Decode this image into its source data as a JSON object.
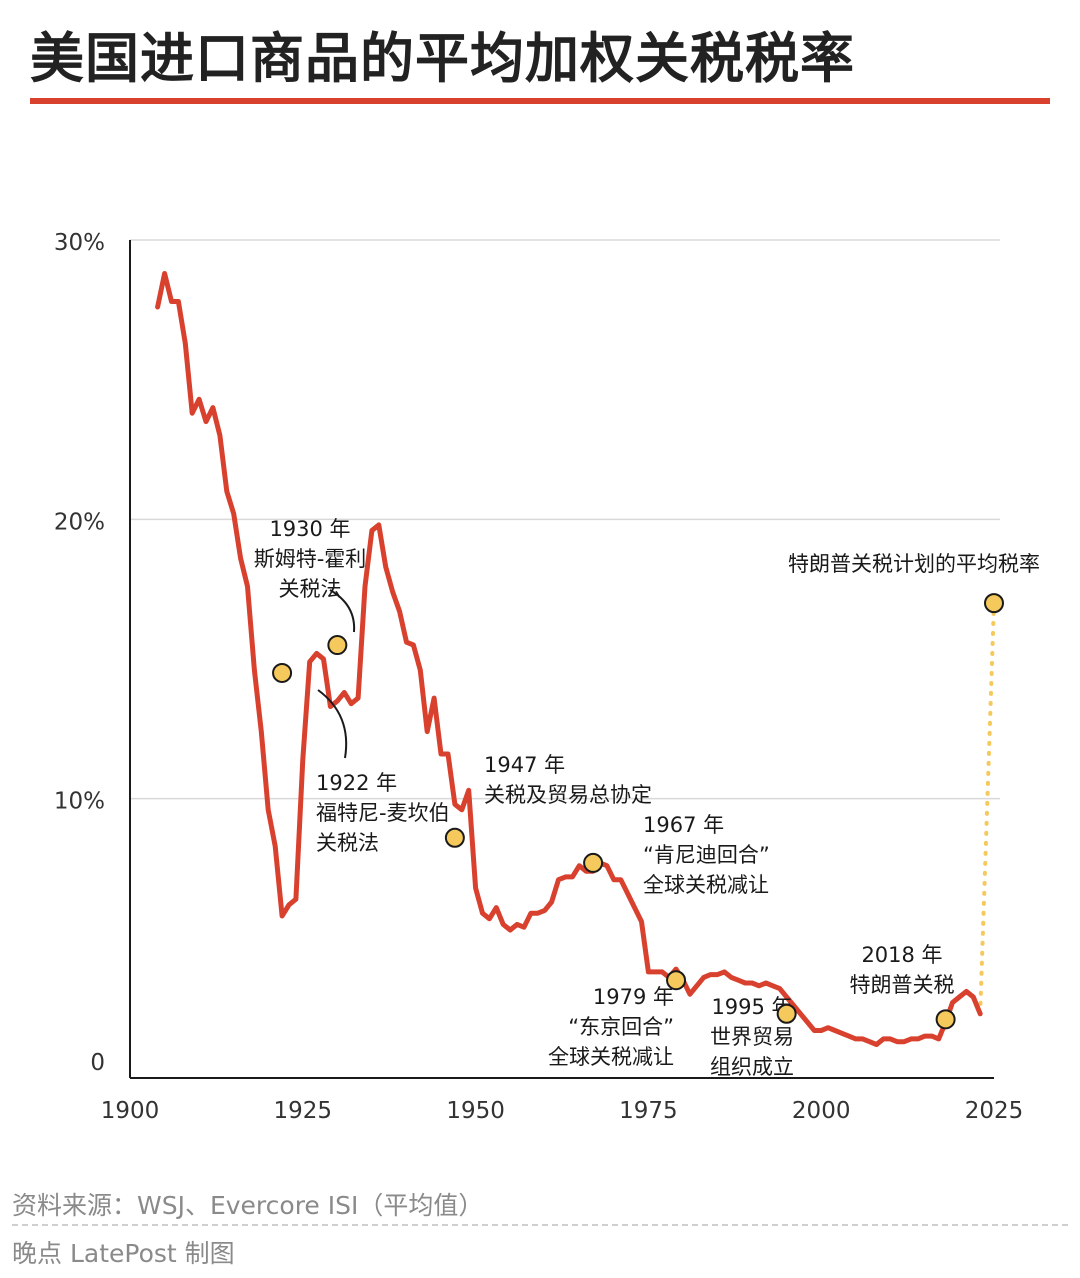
{
  "title": "美国进口商品的平均加权关税税率",
  "footer": {
    "source": "资料来源：WSJ、Evercore ISI（平均值）",
    "credit": "晚点 LatePost 制图"
  },
  "colors": {
    "accent": "#d9412f",
    "marker": "#f5c95c",
    "grid": "#d9d9d9",
    "axis": "#1a1a1a"
  },
  "chart_data": {
    "type": "line",
    "title": "美国进口商品的平均加权关税税率",
    "xlabel": "",
    "ylabel": "",
    "xlim": [
      1900,
      2025
    ],
    "ylim": [
      0,
      30
    ],
    "grid": true,
    "x_ticks": [
      "1900",
      "1925",
      "1950",
      "1975",
      "2000",
      "2025"
    ],
    "y_ticks": [
      {
        "value": 0,
        "label": "0"
      },
      {
        "value": 10,
        "label": "10%"
      },
      {
        "value": 20,
        "label": "20%"
      },
      {
        "value": 30,
        "label": "30%"
      }
    ],
    "series": [
      {
        "values": [
          [
            1904,
            27.6
          ],
          [
            1905,
            28.8
          ],
          [
            1906,
            27.8
          ],
          [
            1907,
            27.8
          ],
          [
            1908,
            26.3
          ],
          [
            1909,
            23.8
          ],
          [
            1910,
            24.3
          ],
          [
            1911,
            23.5
          ],
          [
            1912,
            24.0
          ],
          [
            1913,
            23.0
          ],
          [
            1914,
            21.0
          ],
          [
            1915,
            20.2
          ],
          [
            1916,
            18.6
          ],
          [
            1917,
            17.6
          ],
          [
            1918,
            14.6
          ],
          [
            1919,
            12.4
          ],
          [
            1920,
            9.6
          ],
          [
            1921,
            8.3
          ],
          [
            1922,
            5.8
          ],
          [
            1923,
            6.2
          ],
          [
            1924,
            6.4
          ],
          [
            1925,
            11.4
          ],
          [
            1926,
            14.9
          ],
          [
            1927,
            15.2
          ],
          [
            1928,
            15.0
          ],
          [
            1929,
            13.3
          ],
          [
            1930,
            13.5
          ],
          [
            1931,
            13.8
          ],
          [
            1932,
            13.4
          ],
          [
            1933,
            13.6
          ],
          [
            1934,
            17.6
          ],
          [
            1935,
            19.6
          ],
          [
            1936,
            19.8
          ],
          [
            1937,
            18.3
          ],
          [
            1938,
            17.4
          ],
          [
            1939,
            16.7
          ],
          [
            1940,
            15.6
          ],
          [
            1941,
            15.5
          ],
          [
            1942,
            14.6
          ],
          [
            1943,
            12.4
          ],
          [
            1944,
            13.6
          ],
          [
            1945,
            11.6
          ],
          [
            1946,
            11.6
          ],
          [
            1947,
            9.8
          ],
          [
            1948,
            9.6
          ],
          [
            1949,
            10.3
          ],
          [
            1950,
            6.8
          ],
          [
            1951,
            5.9
          ],
          [
            1952,
            5.7
          ],
          [
            1953,
            6.1
          ],
          [
            1954,
            5.5
          ],
          [
            1955,
            5.3
          ],
          [
            1956,
            5.5
          ],
          [
            1957,
            5.4
          ],
          [
            1958,
            5.9
          ],
          [
            1959,
            5.9
          ],
          [
            1960,
            6.0
          ],
          [
            1961,
            6.3
          ],
          [
            1962,
            7.1
          ],
          [
            1963,
            7.2
          ],
          [
            1964,
            7.2
          ],
          [
            1965,
            7.6
          ],
          [
            1966,
            7.4
          ],
          [
            1967,
            7.4
          ],
          [
            1968,
            7.7
          ],
          [
            1969,
            7.6
          ],
          [
            1970,
            7.1
          ],
          [
            1971,
            7.1
          ],
          [
            1972,
            6.6
          ],
          [
            1973,
            6.1
          ],
          [
            1974,
            5.6
          ],
          [
            1975,
            3.8
          ],
          [
            1976,
            3.8
          ],
          [
            1977,
            3.8
          ],
          [
            1978,
            3.6
          ],
          [
            1979,
            3.9
          ],
          [
            1980,
            3.5
          ],
          [
            1981,
            3.0
          ],
          [
            1982,
            3.3
          ],
          [
            1983,
            3.6
          ],
          [
            1984,
            3.7
          ],
          [
            1985,
            3.7
          ],
          [
            1986,
            3.8
          ],
          [
            1987,
            3.6
          ],
          [
            1988,
            3.5
          ],
          [
            1989,
            3.4
          ],
          [
            1990,
            3.4
          ],
          [
            1991,
            3.3
          ],
          [
            1992,
            3.4
          ],
          [
            1993,
            3.3
          ],
          [
            1994,
            3.2
          ],
          [
            1995,
            2.9
          ],
          [
            1996,
            2.6
          ],
          [
            1997,
            2.3
          ],
          [
            1998,
            2.0
          ],
          [
            1999,
            1.7
          ],
          [
            2000,
            1.7
          ],
          [
            2001,
            1.8
          ],
          [
            2002,
            1.7
          ],
          [
            2003,
            1.6
          ],
          [
            2004,
            1.5
          ],
          [
            2005,
            1.4
          ],
          [
            2006,
            1.4
          ],
          [
            2007,
            1.3
          ],
          [
            2008,
            1.2
          ],
          [
            2009,
            1.4
          ],
          [
            2010,
            1.4
          ],
          [
            2011,
            1.3
          ],
          [
            2012,
            1.3
          ],
          [
            2013,
            1.4
          ],
          [
            2014,
            1.4
          ],
          [
            2015,
            1.5
          ],
          [
            2016,
            1.5
          ],
          [
            2017,
            1.4
          ],
          [
            2018,
            2.0
          ],
          [
            2019,
            2.7
          ],
          [
            2020,
            2.9
          ],
          [
            2021,
            3.1
          ],
          [
            2022,
            2.9
          ],
          [
            2023,
            2.3
          ]
        ]
      }
    ],
    "projection": {
      "from": [
        2023,
        2.3
      ],
      "to": [
        2025,
        17.0
      ],
      "label": "特朗普关税计划的平均税率"
    },
    "annotations": [
      {
        "x": 1922,
        "y": 14.5,
        "lines": [
          "1922 年",
          "福特尼-麦坎伯",
          "关税法"
        ],
        "anchor": "start",
        "pos": "below"
      },
      {
        "x": 1930,
        "y": 15.5,
        "lines": [
          "1930 年",
          "斯姆特-霍利",
          "关税法"
        ],
        "anchor": "middle",
        "pos": "above"
      },
      {
        "x": 1947,
        "y": 8.6,
        "lines": [
          "1947 年",
          "关税及贸易总协定"
        ],
        "anchor": "start",
        "pos": "above-right"
      },
      {
        "x": 1967,
        "y": 7.7,
        "lines": [
          "1967 年",
          "“肯尼迪回合”",
          "全球关税减让"
        ],
        "anchor": "start",
        "pos": "above-right"
      },
      {
        "x": 1979,
        "y": 3.5,
        "lines": [
          "1979 年",
          "“东京回合”",
          "全球关税减让"
        ],
        "anchor": "end",
        "pos": "below-left"
      },
      {
        "x": 1995,
        "y": 2.3,
        "lines": [
          "1995 年",
          "世界贸易",
          "组织成立"
        ],
        "anchor": "middle",
        "pos": "below"
      },
      {
        "x": 2018,
        "y": 2.1,
        "lines": [
          "2018 年",
          "特朗普关税"
        ],
        "anchor": "middle",
        "pos": "above"
      }
    ]
  }
}
